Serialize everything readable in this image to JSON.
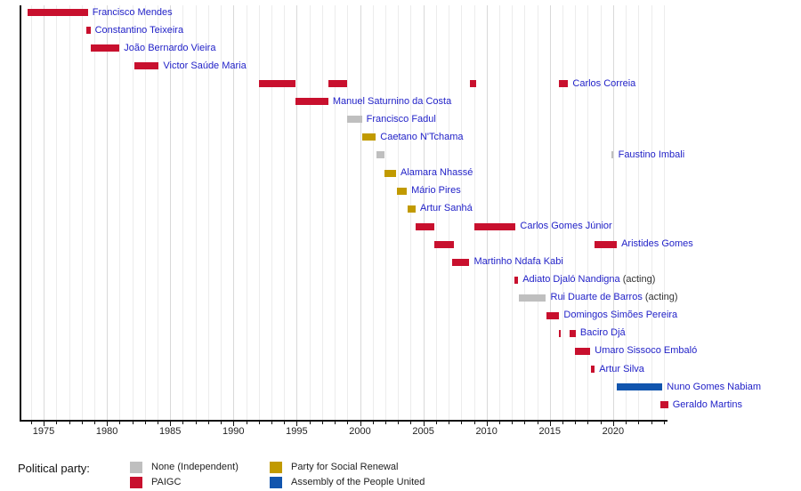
{
  "colors": {
    "person_name": "#2222C8",
    "acting_suffix": "#333333",
    "axis": "#111111",
    "grid_minor": "#ECECEC",
    "grid_major": "#D9D9D9"
  },
  "chart_data": {
    "type": "gantt",
    "title": "",
    "xlabel": "",
    "ylabel": "",
    "x_axis": {
      "min": 1973.1,
      "max": 2024.3,
      "major_ticks": [
        1975,
        1980,
        1985,
        1990,
        1995,
        2000,
        2005,
        2010,
        2015,
        2020
      ],
      "minor_tick_interval": 1,
      "grid": true
    },
    "legend": {
      "title": "Political party:",
      "items": [
        {
          "label": "None (Independent)",
          "party": "none",
          "color": "#BFBFBF"
        },
        {
          "label": "PAIGC",
          "party": "paigc",
          "color": "#C8102E"
        },
        {
          "label": "Party for Social Renewal",
          "party": "prs",
          "color": "#C19A00"
        },
        {
          "label": "Assembly of the People United",
          "party": "apu",
          "color": "#1155AE"
        }
      ]
    },
    "people": [
      {
        "name": "Francisco Mendes",
        "suffix": "",
        "party": "paigc",
        "segments": [
          [
            1973.7,
            1978.5
          ]
        ]
      },
      {
        "name": "Constantino Teixeira",
        "suffix": "",
        "party": "paigc",
        "segments": [
          [
            1978.4,
            1978.7
          ]
        ]
      },
      {
        "name": "João Bernardo Vieira",
        "suffix": "",
        "party": "paigc",
        "segments": [
          [
            1978.7,
            1981.0
          ]
        ]
      },
      {
        "name": "Victor Saúde Maria",
        "suffix": "",
        "party": "paigc",
        "segments": [
          [
            1982.2,
            1984.1
          ]
        ]
      },
      {
        "name": "Carlos Correia",
        "suffix": "",
        "party": "paigc",
        "segments": [
          [
            1992.0,
            1994.9
          ],
          [
            1997.5,
            1999.0
          ],
          [
            2008.65,
            2009.15
          ],
          [
            2015.75,
            2016.45
          ]
        ]
      },
      {
        "name": "Manuel Saturnino da Costa",
        "suffix": "",
        "party": "paigc",
        "segments": [
          [
            1994.9,
            1997.5
          ]
        ]
      },
      {
        "name": "Francisco Fadul",
        "suffix": "",
        "party": "none",
        "segments": [
          [
            1998.95,
            2000.15
          ]
        ]
      },
      {
        "name": "Caetano N'Tchama",
        "suffix": "",
        "party": "prs",
        "segments": [
          [
            2000.15,
            2001.25
          ]
        ]
      },
      {
        "name": "Faustino Imbali",
        "suffix": "",
        "party": "none",
        "segments": [
          [
            2001.3,
            2001.95
          ],
          [
            2019.85,
            2020.05
          ]
        ]
      },
      {
        "name": "Alamara Nhassé",
        "suffix": "",
        "party": "prs",
        "segments": [
          [
            2001.95,
            2002.85
          ]
        ]
      },
      {
        "name": "Mário Pires",
        "suffix": "",
        "party": "prs",
        "segments": [
          [
            2002.9,
            2003.7
          ]
        ]
      },
      {
        "name": "Artur Sanhá",
        "suffix": "",
        "party": "prs",
        "segments": [
          [
            2003.75,
            2004.4
          ]
        ]
      },
      {
        "name": "Carlos Gomes Júnior",
        "suffix": "",
        "party": "paigc",
        "segments": [
          [
            2004.4,
            2005.85
          ],
          [
            2009.0,
            2012.3
          ]
        ]
      },
      {
        "name": "Aristides Gomes",
        "suffix": "",
        "party": "paigc",
        "segments": [
          [
            2005.9,
            2007.4
          ],
          [
            2018.5,
            2020.3
          ]
        ]
      },
      {
        "name": "Martinho Ndafa Kabi",
        "suffix": "",
        "party": "paigc",
        "segments": [
          [
            2007.3,
            2008.65
          ]
        ]
      },
      {
        "name": "Adiato Djaló Nandigna",
        "suffix": " (acting)",
        "party": "paigc",
        "segments": [
          [
            2012.2,
            2012.5
          ]
        ]
      },
      {
        "name": "Rui Duarte de Barros",
        "suffix": " (acting)",
        "party": "none",
        "segments": [
          [
            2012.55,
            2014.7
          ]
        ]
      },
      {
        "name": "Domingos Simões Pereira",
        "suffix": "",
        "party": "paigc",
        "segments": [
          [
            2014.7,
            2015.75
          ]
        ]
      },
      {
        "name": "Baciro Djá",
        "suffix": "",
        "party": "paigc",
        "segments": [
          [
            2015.7,
            2015.9
          ],
          [
            2016.55,
            2017.05
          ]
        ]
      },
      {
        "name": "Umaro Sissoco Embaló",
        "suffix": "",
        "party": "paigc",
        "segments": [
          [
            2016.95,
            2018.2
          ]
        ]
      },
      {
        "name": "Artur Silva",
        "suffix": "",
        "party": "paigc",
        "segments": [
          [
            2018.25,
            2018.55
          ]
        ]
      },
      {
        "name": "Nuno Gomes Nabiam",
        "suffix": "",
        "party": "apu",
        "segments": [
          [
            2020.3,
            2023.9
          ]
        ]
      },
      {
        "name": "Geraldo Martins",
        "suffix": "",
        "party": "paigc",
        "segments": [
          [
            2023.75,
            2024.35
          ]
        ]
      }
    ]
  }
}
